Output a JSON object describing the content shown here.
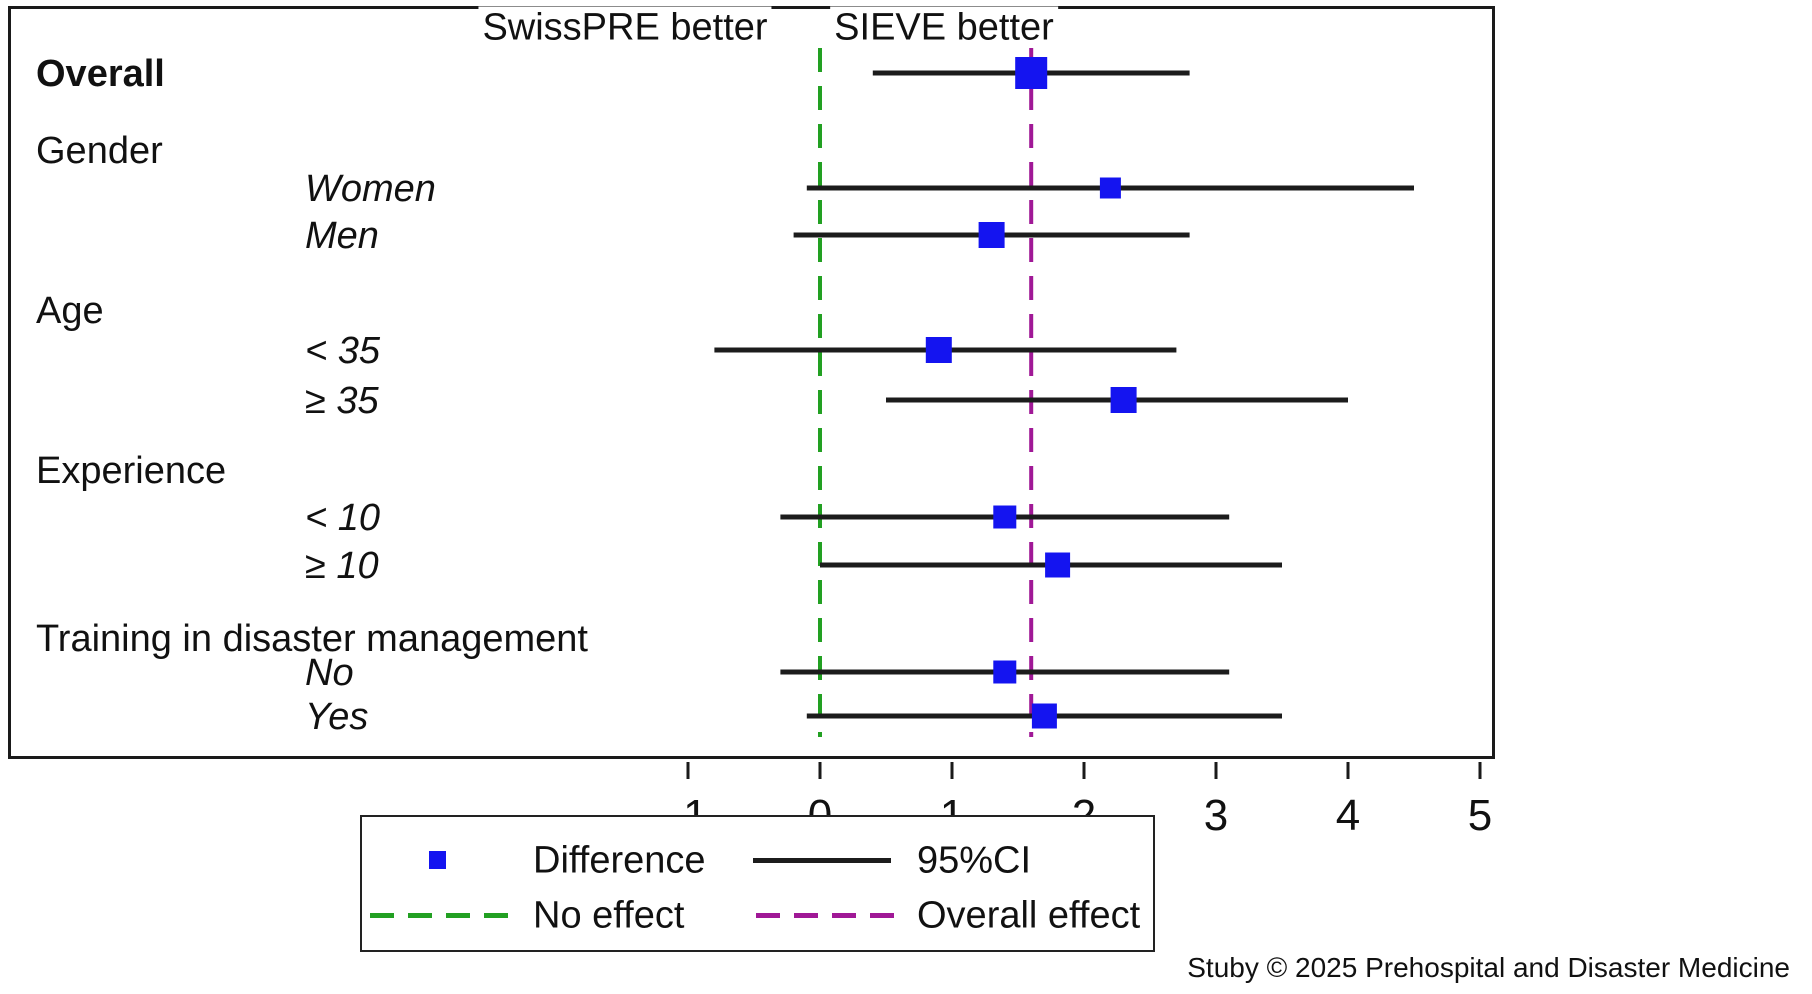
{
  "header": {
    "left_label": "SwissPRE better",
    "right_label": "SIEVE better"
  },
  "legend": {
    "difference_label": "Difference",
    "ci_label": "95%CI",
    "no_effect_label": "No effect",
    "overall_effect_label": "Overall effect"
  },
  "attribution": "Stuby © 2025 Prehospital and Disaster Medicine",
  "colors": {
    "marker_blue": "#1414f0",
    "no_effect_green": "#22a022",
    "overall_effect_purple": "#a01896",
    "ci_line": "#1c1c1c",
    "text": "#111111"
  },
  "chart_data": {
    "type": "forest",
    "title": "",
    "xlabel": "",
    "xlim": [
      -1,
      5
    ],
    "x_ticks": [
      -1,
      0,
      1,
      2,
      3,
      4,
      5
    ],
    "grid": false,
    "no_effect_x": 0,
    "overall_effect_x": 1.6,
    "legend_position": "bottom",
    "rows": [
      {
        "kind": "estimate",
        "label": "Overall",
        "style": "bold",
        "indent": false,
        "estimate": 1.6,
        "ci_low": 0.4,
        "ci_high": 2.8,
        "marker_size": 32
      },
      {
        "kind": "group",
        "label": "Gender"
      },
      {
        "kind": "estimate",
        "label": "Women",
        "style": "italic",
        "indent": true,
        "estimate": 2.2,
        "ci_low": -0.1,
        "ci_high": 4.5,
        "marker_size": 21
      },
      {
        "kind": "estimate",
        "label": "Men",
        "style": "italic",
        "indent": true,
        "estimate": 1.3,
        "ci_low": -0.2,
        "ci_high": 2.8,
        "marker_size": 26
      },
      {
        "kind": "group",
        "label": "Age"
      },
      {
        "kind": "estimate",
        "label": "< 35",
        "style": "italic",
        "indent": true,
        "estimate": 0.9,
        "ci_low": -0.8,
        "ci_high": 2.7,
        "marker_size": 26
      },
      {
        "kind": "estimate",
        "label": "≥ 35",
        "style": "italic",
        "indent": true,
        "estimate": 2.3,
        "ci_low": 0.5,
        "ci_high": 4.0,
        "marker_size": 26
      },
      {
        "kind": "group",
        "label": "Experience"
      },
      {
        "kind": "estimate",
        "label": "< 10",
        "style": "italic",
        "indent": true,
        "estimate": 1.4,
        "ci_low": -0.3,
        "ci_high": 3.1,
        "marker_size": 23
      },
      {
        "kind": "estimate",
        "label": "≥ 10",
        "style": "italic",
        "indent": true,
        "estimate": 1.8,
        "ci_low": 0.0,
        "ci_high": 3.5,
        "marker_size": 25
      },
      {
        "kind": "group",
        "label": "Training in disaster management"
      },
      {
        "kind": "estimate",
        "label": "No",
        "style": "italic",
        "indent": true,
        "estimate": 1.4,
        "ci_low": -0.3,
        "ci_high": 3.1,
        "marker_size": 23
      },
      {
        "kind": "estimate",
        "label": "Yes",
        "style": "italic",
        "indent": true,
        "estimate": 1.7,
        "ci_low": -0.1,
        "ci_high": 3.5,
        "marker_size": 25
      }
    ]
  }
}
